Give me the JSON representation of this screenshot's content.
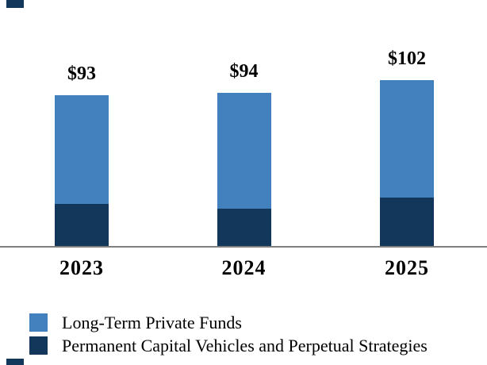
{
  "chart_data": {
    "type": "bar",
    "stacked": true,
    "title": "",
    "xlabel": "",
    "ylabel": "",
    "categories": [
      "2023",
      "2024",
      "2025"
    ],
    "series": [
      {
        "name": "Long-Term Private Funds",
        "color": "#4281BD",
        "values": [
          67,
          71,
          72
        ]
      },
      {
        "name": "Permanent Capital Vehicles and Perpetual Strategies",
        "color": "#13375B",
        "values": [
          26,
          23,
          30
        ]
      }
    ],
    "totals": [
      93,
      94,
      102
    ],
    "total_labels": [
      "$93",
      "$94",
      "$102"
    ],
    "value_prefix": "$",
    "ylim": [
      0,
      110
    ],
    "grid": false,
    "y_axis_shown": false,
    "legend_position": "bottom-left"
  },
  "colors": {
    "axis_line": "#7F7F7F",
    "background": "#FFFFFF",
    "text": "#000000",
    "clipped_edge_swatch": "#13375B"
  }
}
